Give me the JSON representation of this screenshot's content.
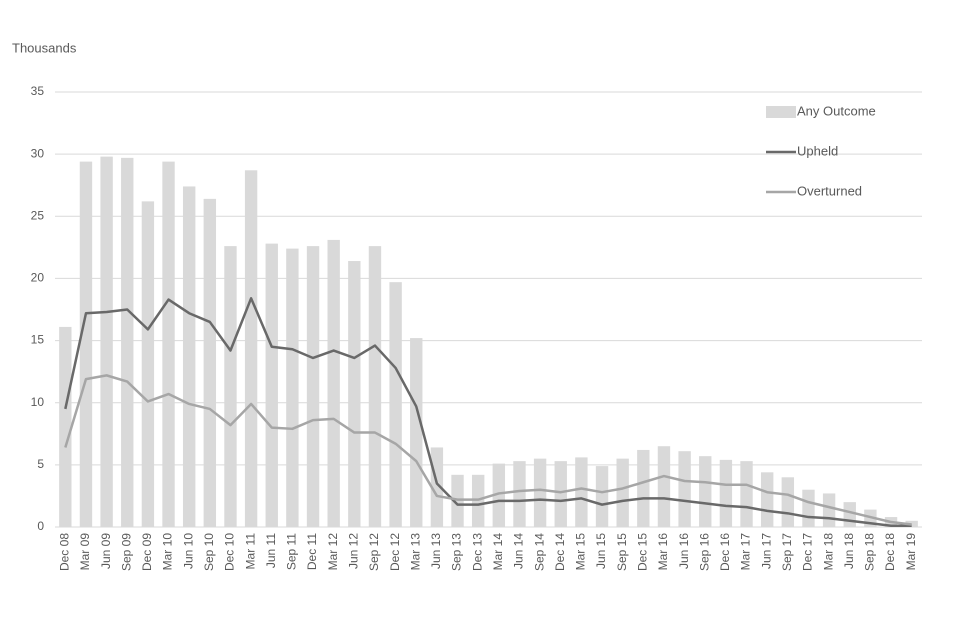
{
  "chart_data": {
    "type": "bar-line",
    "y_label": "Thousands",
    "categories": [
      "Dec 08",
      "Mar 09",
      "Jun 09",
      "Sep 09",
      "Dec 09",
      "Mar 10",
      "Jun 10",
      "Sep 10",
      "Dec 10",
      "Mar 11",
      "Jun 11",
      "Sep 11",
      "Dec 11",
      "Mar 12",
      "Jun 12",
      "Sep 12",
      "Dec 12",
      "Mar 13",
      "Jun 13",
      "Sep 13",
      "Dec 13",
      "Mar 14",
      "Jun 14",
      "Sep 14",
      "Dec 14",
      "Mar 15",
      "Jun 15",
      "Sep 15",
      "Dec 15",
      "Mar 16",
      "Jun 16",
      "Sep 16",
      "Dec 16",
      "Mar 17",
      "Jun 17",
      "Sep 17",
      "Dec 17",
      "Mar 18",
      "Jun 18",
      "Sep 18",
      "Dec 18",
      "Mar 19"
    ],
    "series": [
      {
        "name": "Any Outcome",
        "kind": "bar",
        "color": "#d9d9d9",
        "values": [
          16.1,
          29.4,
          29.8,
          29.7,
          26.2,
          29.4,
          27.4,
          26.4,
          22.6,
          28.7,
          22.8,
          22.4,
          22.6,
          23.1,
          21.4,
          22.6,
          19.7,
          15.2,
          6.4,
          4.2,
          4.2,
          5.1,
          5.3,
          5.5,
          5.3,
          5.6,
          4.9,
          5.5,
          6.2,
          6.5,
          6.1,
          5.7,
          5.4,
          5.3,
          4.4,
          4.0,
          3.0,
          2.7,
          2.0,
          1.4,
          0.8,
          0.5
        ]
      },
      {
        "name": "Upheld",
        "kind": "line",
        "color": "#696969",
        "values": [
          9.5,
          17.2,
          17.3,
          17.5,
          15.9,
          18.3,
          17.2,
          16.5,
          14.2,
          18.4,
          14.5,
          14.3,
          13.6,
          14.2,
          13.6,
          14.6,
          12.8,
          9.7,
          3.5,
          1.8,
          1.8,
          2.1,
          2.1,
          2.2,
          2.1,
          2.3,
          1.8,
          2.1,
          2.3,
          2.3,
          2.1,
          1.9,
          1.7,
          1.6,
          1.3,
          1.1,
          0.8,
          0.7,
          0.5,
          0.3,
          0.1,
          0.1
        ]
      },
      {
        "name": "Overturned",
        "kind": "line",
        "color": "#a6a6a6",
        "values": [
          6.4,
          11.9,
          12.2,
          11.7,
          10.1,
          10.7,
          9.9,
          9.5,
          8.2,
          9.9,
          8.0,
          7.9,
          8.6,
          8.7,
          7.6,
          7.6,
          6.7,
          5.3,
          2.5,
          2.2,
          2.2,
          2.7,
          2.9,
          3.0,
          2.8,
          3.1,
          2.8,
          3.1,
          3.6,
          4.1,
          3.7,
          3.6,
          3.4,
          3.4,
          2.8,
          2.6,
          2.0,
          1.6,
          1.2,
          0.8,
          0.4,
          0.2
        ]
      }
    ],
    "ylim": [
      0,
      35
    ],
    "yticks": [
      0,
      5,
      10,
      15,
      20,
      25,
      30,
      35
    ],
    "grid": true,
    "legend": "top-right"
  }
}
